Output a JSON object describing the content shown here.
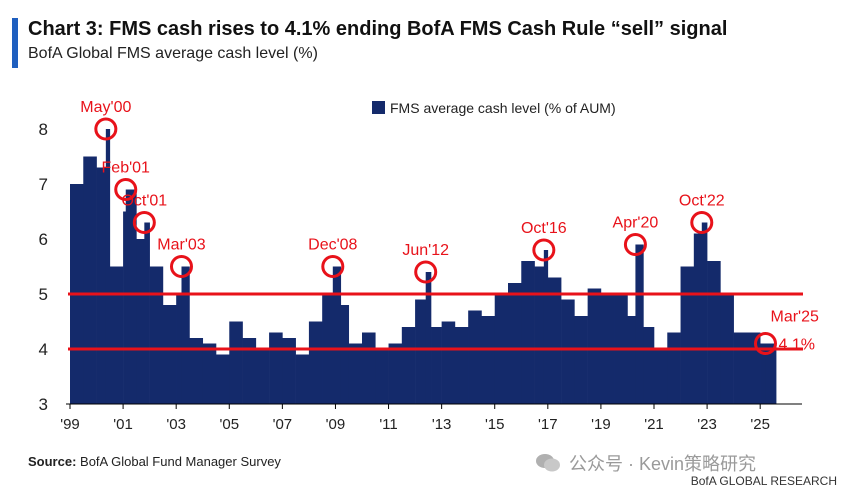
{
  "header": {
    "title": "Chart 3: FMS cash rises to 4.1% ending BofA FMS Cash Rule “sell” signal",
    "subtitle": "BofA Global FMS average cash level (%)"
  },
  "footer": {
    "source_label": "Source:",
    "source_text": "BofA Global Fund Manager Survey",
    "watermark": "公众号 · Kevin策略研究",
    "brand": "BofA GLOBAL RESEARCH"
  },
  "colors": {
    "bar": "#142a6b",
    "threshold": "#e8121a",
    "annotation": "#e8121a"
  },
  "chart_data": {
    "type": "bar",
    "title": "Chart 3: FMS cash rises to 4.1% ending BofA FMS Cash Rule “sell” signal",
    "subtitle": "BofA Global FMS average cash level (%)",
    "legend": {
      "label": "FMS average cash level (% of AUM)",
      "placement": "top-center"
    },
    "x_ticks": [
      "'99",
      "'01",
      "'03",
      "'05",
      "'07",
      "'09",
      "'11",
      "'13",
      "'15",
      "'17",
      "'19",
      "'21",
      "'23",
      "'25"
    ],
    "x_range": [
      1999.0,
      2026.5
    ],
    "ylim": [
      3,
      8.6
    ],
    "y_ticks": [
      3,
      4,
      5,
      6,
      7,
      8
    ],
    "thresholds": [
      5.0,
      4.0
    ],
    "series": [
      {
        "x": [
          1999.0,
          1999.5,
          2000.0,
          2000.35,
          2000.5,
          2001.0,
          2001.1,
          2001.5,
          2001.8,
          2002.0,
          2002.5,
          2003.0,
          2003.2,
          2003.5,
          2004.0,
          2004.5,
          2005.0,
          2005.5,
          2006.0,
          2006.5,
          2007.0,
          2007.5,
          2008.0,
          2008.5,
          2008.9,
          2009.2,
          2009.5,
          2010.0,
          2010.5,
          2011.0,
          2011.5,
          2012.0,
          2012.4,
          2012.6,
          2013.0,
          2013.5,
          2014.0,
          2014.5,
          2015.0,
          2015.5,
          2016.0,
          2016.5,
          2016.85,
          2017.0,
          2017.5,
          2018.0,
          2018.5,
          2019.0,
          2019.5,
          2020.0,
          2020.3,
          2020.6,
          2021.0,
          2021.5,
          2022.0,
          2022.5,
          2022.8,
          2023.0,
          2023.5,
          2024.0,
          2024.5,
          2025.0,
          2025.2
        ],
        "values": [
          7.0,
          7.5,
          7.3,
          8.0,
          5.5,
          6.5,
          6.9,
          6.0,
          6.3,
          5.5,
          4.8,
          5.0,
          5.5,
          4.2,
          4.1,
          3.9,
          4.5,
          4.2,
          4.0,
          4.3,
          4.2,
          3.9,
          4.5,
          5.0,
          5.5,
          4.8,
          4.1,
          4.3,
          4.0,
          4.1,
          4.4,
          4.9,
          5.4,
          4.4,
          4.5,
          4.4,
          4.7,
          4.6,
          5.0,
          5.2,
          5.6,
          5.5,
          5.8,
          5.3,
          4.9,
          4.6,
          5.1,
          5.0,
          5.0,
          4.6,
          5.9,
          4.4,
          4.0,
          4.3,
          5.5,
          6.1,
          6.3,
          5.6,
          5.0,
          4.3,
          4.3,
          4.1,
          4.1
        ]
      }
    ],
    "annotations": [
      {
        "label": "May'00",
        "x": 2000.35,
        "y": 8.0
      },
      {
        "label": "Feb'01",
        "x": 2001.1,
        "y": 6.9
      },
      {
        "label": "Oct'01",
        "x": 2001.8,
        "y": 6.3
      },
      {
        "label": "Mar'03",
        "x": 2003.2,
        "y": 5.5
      },
      {
        "label": "Dec'08",
        "x": 2008.9,
        "y": 5.5
      },
      {
        "label": "Jun'12",
        "x": 2012.4,
        "y": 5.4
      },
      {
        "label": "Oct'16",
        "x": 2016.85,
        "y": 5.8
      },
      {
        "label": "Apr'20",
        "x": 2020.3,
        "y": 5.9
      },
      {
        "label": "Oct'22",
        "x": 2022.8,
        "y": 6.3
      },
      {
        "label": "Mar'25",
        "sublabel": "4.1%",
        "x": 2025.2,
        "y": 4.1
      }
    ]
  }
}
